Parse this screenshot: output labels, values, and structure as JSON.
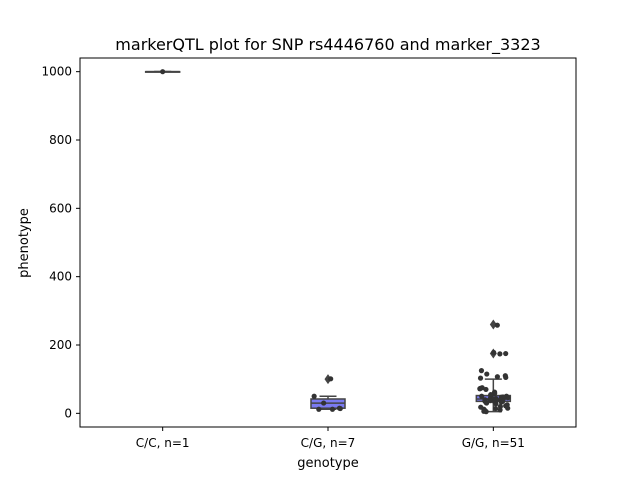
{
  "chart_data": {
    "type": "box",
    "title": "markerQTL plot for SNP rs4446760 and marker_3323",
    "xlabel": "genotype",
    "ylabel": "phenotype",
    "ylim": [
      -40,
      1040
    ],
    "yticks": [
      0,
      200,
      400,
      600,
      800,
      1000
    ],
    "grid": false,
    "categories": [
      "C/C, n=1",
      "C/G, n=7",
      "G/G, n=51"
    ],
    "box_color": "#7b7bf2",
    "point_color": "#333333",
    "groups": [
      {
        "category": "C/C, n=1",
        "box": {
          "q1": 1000,
          "median": 1000,
          "q3": 1000,
          "whisker_low": 1000,
          "whisker_high": 1000
        },
        "outliers": [],
        "points": [
          1000
        ]
      },
      {
        "category": "C/G, n=7",
        "box": {
          "q1": 15,
          "median": 30,
          "q3": 42,
          "whisker_low": 12,
          "whisker_high": 50
        },
        "outliers": [
          100
        ],
        "points": [
          101,
          50,
          30,
          15,
          12,
          14,
          12
        ]
      },
      {
        "category": "G/G, n=51",
        "box": {
          "q1": 35,
          "median": 42,
          "q3": 52,
          "whisker_low": 5,
          "whisker_high": 100
        },
        "outliers": [
          260,
          175
        ],
        "points": [
          258,
          178,
          175,
          174,
          125,
          115,
          110,
          107,
          105,
          103,
          75,
          73,
          72,
          70,
          62,
          58,
          55,
          52,
          50,
          50,
          48,
          47,
          46,
          45,
          44,
          43,
          42,
          42,
          41,
          40,
          40,
          38,
          37,
          36,
          35,
          34,
          33,
          32,
          30,
          28,
          25,
          22,
          20,
          18,
          15,
          14,
          12,
          10,
          8,
          6,
          5
        ]
      }
    ]
  }
}
